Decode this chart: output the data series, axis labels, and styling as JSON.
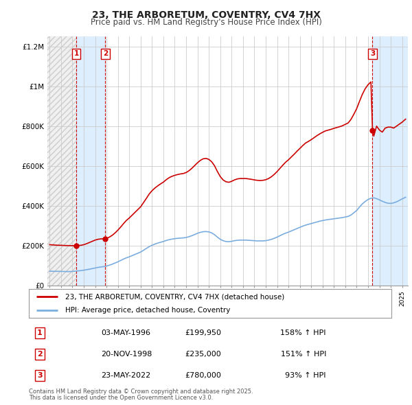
{
  "title": "23, THE ARBORETUM, COVENTRY, CV4 7HX",
  "subtitle": "Price paid vs. HM Land Registry's House Price Index (HPI)",
  "hpi_label": "HPI: Average price, detached house, Coventry",
  "property_label": "23, THE ARBORETUM, COVENTRY, CV4 7HX (detached house)",
  "footer1": "Contains HM Land Registry data © Crown copyright and database right 2025.",
  "footer2": "This data is licensed under the Open Government Licence v3.0.",
  "sales": [
    {
      "id": 1,
      "date_num": 1996.34,
      "price": 199950,
      "date_str": "03-MAY-1996",
      "pct": "158%",
      "dir": "↑"
    },
    {
      "id": 2,
      "date_num": 1998.89,
      "price": 235000,
      "date_str": "20-NOV-1998",
      "pct": "151%",
      "dir": "↑"
    },
    {
      "id": 3,
      "date_num": 2022.39,
      "price": 780000,
      "date_str": "23-MAY-2022",
      "pct": "93%",
      "dir": "↑"
    }
  ],
  "property_color": "#cc0000",
  "hpi_color": "#7aadde",
  "shade_color": "#ddeeff",
  "vline_color": "#cc0000",
  "background_color": "#ffffff",
  "grid_color": "#cccccc",
  "ylim": [
    0,
    1250000
  ],
  "xlim_min": 1993.8,
  "xlim_max": 2025.5,
  "yticks": [
    0,
    200000,
    400000,
    600000,
    800000,
    1000000,
    1200000
  ],
  "ylabels": [
    "£0",
    "£200K",
    "£400K",
    "£600K",
    "£800K",
    "£1M",
    "£1.2M"
  ],
  "hpi_data": [
    [
      1994.0,
      72000
    ],
    [
      1994.25,
      71500
    ],
    [
      1994.5,
      71000
    ],
    [
      1994.75,
      71200
    ],
    [
      1995.0,
      71000
    ],
    [
      1995.25,
      70500
    ],
    [
      1995.5,
      70000
    ],
    [
      1995.75,
      70200
    ],
    [
      1996.0,
      71000
    ],
    [
      1996.25,
      72000
    ],
    [
      1996.5,
      73500
    ],
    [
      1996.75,
      75000
    ],
    [
      1997.0,
      77000
    ],
    [
      1997.25,
      79500
    ],
    [
      1997.5,
      82000
    ],
    [
      1997.75,
      85000
    ],
    [
      1998.0,
      88000
    ],
    [
      1998.25,
      91000
    ],
    [
      1998.5,
      93000
    ],
    [
      1998.75,
      95000
    ],
    [
      1999.0,
      98000
    ],
    [
      1999.25,
      102000
    ],
    [
      1999.5,
      107000
    ],
    [
      1999.75,
      113000
    ],
    [
      2000.0,
      119000
    ],
    [
      2000.25,
      126000
    ],
    [
      2000.5,
      133000
    ],
    [
      2000.75,
      139000
    ],
    [
      2001.0,
      144000
    ],
    [
      2001.25,
      150000
    ],
    [
      2001.5,
      156000
    ],
    [
      2001.75,
      162000
    ],
    [
      2002.0,
      168000
    ],
    [
      2002.25,
      177000
    ],
    [
      2002.5,
      186000
    ],
    [
      2002.75,
      195000
    ],
    [
      2003.0,
      202000
    ],
    [
      2003.25,
      208000
    ],
    [
      2003.5,
      213000
    ],
    [
      2003.75,
      217000
    ],
    [
      2004.0,
      221000
    ],
    [
      2004.25,
      226000
    ],
    [
      2004.5,
      230000
    ],
    [
      2004.75,
      233000
    ],
    [
      2005.0,
      235000
    ],
    [
      2005.25,
      237000
    ],
    [
      2005.5,
      238000
    ],
    [
      2005.75,
      239000
    ],
    [
      2006.0,
      241000
    ],
    [
      2006.25,
      245000
    ],
    [
      2006.5,
      250000
    ],
    [
      2006.75,
      256000
    ],
    [
      2007.0,
      262000
    ],
    [
      2007.25,
      267000
    ],
    [
      2007.5,
      270000
    ],
    [
      2007.75,
      271000
    ],
    [
      2008.0,
      269000
    ],
    [
      2008.25,
      264000
    ],
    [
      2008.5,
      255000
    ],
    [
      2008.75,
      243000
    ],
    [
      2009.0,
      232000
    ],
    [
      2009.25,
      225000
    ],
    [
      2009.5,
      221000
    ],
    [
      2009.75,
      220000
    ],
    [
      2010.0,
      222000
    ],
    [
      2010.25,
      225000
    ],
    [
      2010.5,
      227000
    ],
    [
      2010.75,
      228000
    ],
    [
      2011.0,
      228000
    ],
    [
      2011.25,
      228000
    ],
    [
      2011.5,
      227000
    ],
    [
      2011.75,
      226000
    ],
    [
      2012.0,
      225000
    ],
    [
      2012.25,
      224000
    ],
    [
      2012.5,
      224000
    ],
    [
      2012.75,
      224000
    ],
    [
      2013.0,
      225000
    ],
    [
      2013.25,
      228000
    ],
    [
      2013.5,
      232000
    ],
    [
      2013.75,
      237000
    ],
    [
      2014.0,
      243000
    ],
    [
      2014.25,
      250000
    ],
    [
      2014.5,
      257000
    ],
    [
      2014.75,
      263000
    ],
    [
      2015.0,
      268000
    ],
    [
      2015.25,
      274000
    ],
    [
      2015.5,
      280000
    ],
    [
      2015.75,
      286000
    ],
    [
      2016.0,
      292000
    ],
    [
      2016.25,
      298000
    ],
    [
      2016.5,
      303000
    ],
    [
      2016.75,
      307000
    ],
    [
      2017.0,
      311000
    ],
    [
      2017.25,
      315000
    ],
    [
      2017.5,
      319000
    ],
    [
      2017.75,
      323000
    ],
    [
      2018.0,
      326000
    ],
    [
      2018.25,
      329000
    ],
    [
      2018.5,
      331000
    ],
    [
      2018.75,
      333000
    ],
    [
      2019.0,
      335000
    ],
    [
      2019.25,
      337000
    ],
    [
      2019.5,
      339000
    ],
    [
      2019.75,
      341000
    ],
    [
      2020.0,
      344000
    ],
    [
      2020.25,
      347000
    ],
    [
      2020.5,
      354000
    ],
    [
      2020.75,
      365000
    ],
    [
      2021.0,
      377000
    ],
    [
      2021.25,
      394000
    ],
    [
      2021.5,
      410000
    ],
    [
      2021.75,
      422000
    ],
    [
      2022.0,
      432000
    ],
    [
      2022.25,
      438000
    ],
    [
      2022.5,
      440000
    ],
    [
      2022.75,
      436000
    ],
    [
      2023.0,
      430000
    ],
    [
      2023.25,
      423000
    ],
    [
      2023.5,
      417000
    ],
    [
      2023.75,
      413000
    ],
    [
      2024.0,
      412000
    ],
    [
      2024.25,
      415000
    ],
    [
      2024.5,
      420000
    ],
    [
      2024.75,
      427000
    ],
    [
      2025.0,
      435000
    ],
    [
      2025.3,
      443000
    ]
  ],
  "property_hpi_data": [
    [
      1994.0,
      205000
    ],
    [
      1994.25,
      204000
    ],
    [
      1994.5,
      203000
    ],
    [
      1994.75,
      202000
    ],
    [
      1995.0,
      202000
    ],
    [
      1995.25,
      201000
    ],
    [
      1995.5,
      200500
    ],
    [
      1995.75,
      200200
    ],
    [
      1996.0,
      200100
    ],
    [
      1996.34,
      199950
    ],
    [
      1996.5,
      200500
    ],
    [
      1996.75,
      202000
    ],
    [
      1997.0,
      205000
    ],
    [
      1997.25,
      210000
    ],
    [
      1997.5,
      216000
    ],
    [
      1997.75,
      222000
    ],
    [
      1998.0,
      228000
    ],
    [
      1998.25,
      232000
    ],
    [
      1998.5,
      234000
    ],
    [
      1998.75,
      235000
    ],
    [
      1998.89,
      235000
    ],
    [
      1999.0,
      237000
    ],
    [
      1999.25,
      243000
    ],
    [
      1999.5,
      252000
    ],
    [
      1999.75,
      264000
    ],
    [
      2000.0,
      278000
    ],
    [
      2000.25,
      294000
    ],
    [
      2000.5,
      311000
    ],
    [
      2000.75,
      327000
    ],
    [
      2001.0,
      339000
    ],
    [
      2001.25,
      353000
    ],
    [
      2001.5,
      367000
    ],
    [
      2001.75,
      381000
    ],
    [
      2002.0,
      395000
    ],
    [
      2002.25,
      416000
    ],
    [
      2002.5,
      437000
    ],
    [
      2002.75,
      459000
    ],
    [
      2003.0,
      476000
    ],
    [
      2003.25,
      489000
    ],
    [
      2003.5,
      500000
    ],
    [
      2003.75,
      510000
    ],
    [
      2004.0,
      519000
    ],
    [
      2004.25,
      531000
    ],
    [
      2004.5,
      541000
    ],
    [
      2004.75,
      548000
    ],
    [
      2005.0,
      553000
    ],
    [
      2005.25,
      557000
    ],
    [
      2005.5,
      560000
    ],
    [
      2005.75,
      562000
    ],
    [
      2006.0,
      567000
    ],
    [
      2006.25,
      576000
    ],
    [
      2006.5,
      588000
    ],
    [
      2006.75,
      602000
    ],
    [
      2007.0,
      616000
    ],
    [
      2007.25,
      628000
    ],
    [
      2007.5,
      636000
    ],
    [
      2007.75,
      638000
    ],
    [
      2008.0,
      633000
    ],
    [
      2008.25,
      621000
    ],
    [
      2008.5,
      601000
    ],
    [
      2008.75,
      572000
    ],
    [
      2009.0,
      547000
    ],
    [
      2009.25,
      530000
    ],
    [
      2009.5,
      521000
    ],
    [
      2009.75,
      518000
    ],
    [
      2010.0,
      523000
    ],
    [
      2010.25,
      530000
    ],
    [
      2010.5,
      535000
    ],
    [
      2010.75,
      537000
    ],
    [
      2011.0,
      537000
    ],
    [
      2011.25,
      537000
    ],
    [
      2011.5,
      535000
    ],
    [
      2011.75,
      533000
    ],
    [
      2012.0,
      530000
    ],
    [
      2012.25,
      528000
    ],
    [
      2012.5,
      527000
    ],
    [
      2012.75,
      528000
    ],
    [
      2013.0,
      531000
    ],
    [
      2013.25,
      537000
    ],
    [
      2013.5,
      546000
    ],
    [
      2013.75,
      558000
    ],
    [
      2014.0,
      572000
    ],
    [
      2014.25,
      588000
    ],
    [
      2014.5,
      604000
    ],
    [
      2014.75,
      619000
    ],
    [
      2015.0,
      631000
    ],
    [
      2015.25,
      645000
    ],
    [
      2015.5,
      659000
    ],
    [
      2015.75,
      674000
    ],
    [
      2016.0,
      688000
    ],
    [
      2016.25,
      702000
    ],
    [
      2016.5,
      715000
    ],
    [
      2016.75,
      723000
    ],
    [
      2017.0,
      732000
    ],
    [
      2017.25,
      742000
    ],
    [
      2017.5,
      752000
    ],
    [
      2017.75,
      761000
    ],
    [
      2018.0,
      769000
    ],
    [
      2018.25,
      776000
    ],
    [
      2018.5,
      780000
    ],
    [
      2018.75,
      784000
    ],
    [
      2019.0,
      789000
    ],
    [
      2019.25,
      793000
    ],
    [
      2019.5,
      797000
    ],
    [
      2019.75,
      802000
    ],
    [
      2020.0,
      809000
    ],
    [
      2020.25,
      816000
    ],
    [
      2020.5,
      834000
    ],
    [
      2020.75,
      860000
    ],
    [
      2021.0,
      888000
    ],
    [
      2021.25,
      925000
    ],
    [
      2021.5,
      960000
    ],
    [
      2021.75,
      988000
    ],
    [
      2022.0,
      1008000
    ],
    [
      2022.25,
      1022000
    ],
    [
      2022.39,
      780000
    ],
    [
      2022.5,
      750000
    ],
    [
      2022.75,
      800000
    ],
    [
      2023.0,
      780000
    ],
    [
      2023.25,
      770000
    ],
    [
      2023.5,
      790000
    ],
    [
      2023.75,
      795000
    ],
    [
      2024.0,
      795000
    ],
    [
      2024.25,
      790000
    ],
    [
      2024.5,
      800000
    ],
    [
      2024.75,
      810000
    ],
    [
      2025.0,
      820000
    ],
    [
      2025.3,
      835000
    ]
  ]
}
